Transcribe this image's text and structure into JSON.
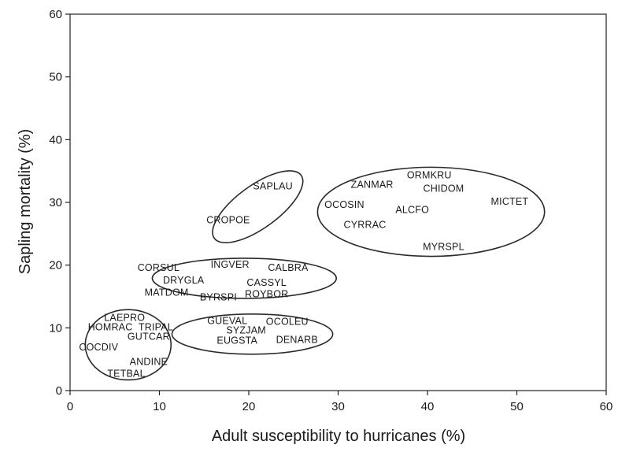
{
  "chart_data": {
    "type": "scatter",
    "title": "",
    "xlabel": "Adult susceptibility to hurricanes (%)",
    "ylabel": "Sapling mortality (%)",
    "xlim": [
      0,
      60
    ],
    "ylim": [
      0,
      60
    ],
    "x_ticks": [
      "0",
      "10",
      "20",
      "30",
      "40",
      "50",
      "60"
    ],
    "y_ticks": [
      "0",
      "10",
      "20",
      "30",
      "40",
      "50",
      "60"
    ],
    "grid": false,
    "points": [
      {
        "label": "SAPLAU",
        "x": 22.7,
        "y": 32.6
      },
      {
        "label": "CROPOE",
        "x": 17.7,
        "y": 27.2
      },
      {
        "label": "ZANMAR",
        "x": 33.8,
        "y": 32.8
      },
      {
        "label": "ORMKRU",
        "x": 40.2,
        "y": 34.3
      },
      {
        "label": "CHIDOM",
        "x": 41.8,
        "y": 32.2
      },
      {
        "label": "MICTET",
        "x": 49.2,
        "y": 30.1
      },
      {
        "label": "OCOSIN",
        "x": 30.7,
        "y": 29.6
      },
      {
        "label": "ALCFO",
        "x": 38.3,
        "y": 28.8
      },
      {
        "label": "CYRRAC",
        "x": 33.0,
        "y": 26.4
      },
      {
        "label": "MYRSPL",
        "x": 41.8,
        "y": 22.9
      },
      {
        "label": "CORSUL",
        "x": 9.9,
        "y": 19.6
      },
      {
        "label": "INGVER",
        "x": 17.9,
        "y": 20.1
      },
      {
        "label": "CALBRA",
        "x": 24.4,
        "y": 19.6
      },
      {
        "label": "DRYGLA",
        "x": 12.7,
        "y": 17.6
      },
      {
        "label": "CASSYL",
        "x": 22.0,
        "y": 17.2
      },
      {
        "label": "MATDOM",
        "x": 10.8,
        "y": 15.6
      },
      {
        "label": "BYRSPI",
        "x": 16.6,
        "y": 14.9
      },
      {
        "label": "ROYBOR",
        "x": 22.0,
        "y": 15.4
      },
      {
        "label": "LAEPRO",
        "x": 6.1,
        "y": 11.6
      },
      {
        "label": "HOMRAC",
        "x": 4.5,
        "y": 10.1
      },
      {
        "label": "TRIPAL",
        "x": 9.6,
        "y": 10.1
      },
      {
        "label": "GUTCAR",
        "x": 8.8,
        "y": 8.6
      },
      {
        "label": "COCDIV",
        "x": 3.2,
        "y": 6.9
      },
      {
        "label": "ANDINE",
        "x": 8.8,
        "y": 4.6
      },
      {
        "label": "TETBAL",
        "x": 6.3,
        "y": 2.7
      },
      {
        "label": "GUEVAL",
        "x": 17.6,
        "y": 11.1
      },
      {
        "label": "OCOLEU",
        "x": 24.3,
        "y": 11.0
      },
      {
        "label": "SYZJAM",
        "x": 19.7,
        "y": 9.6
      },
      {
        "label": "EUGSTA",
        "x": 18.7,
        "y": 8.0
      },
      {
        "label": "DENARB",
        "x": 25.4,
        "y": 8.1
      }
    ],
    "groups": [
      {
        "cx": 21.0,
        "cy": 29.3,
        "rx": 6.0,
        "ry": 3.4,
        "rotate": -36
      },
      {
        "cx": 40.4,
        "cy": 28.5,
        "rx": 12.7,
        "ry": 7.1,
        "rotate": 0
      },
      {
        "cx": 19.5,
        "cy": 17.9,
        "rx": 10.3,
        "ry": 3.2,
        "rotate": 0
      },
      {
        "cx": 6.5,
        "cy": 7.3,
        "rx": 4.8,
        "ry": 5.6,
        "rotate": 0
      },
      {
        "cx": 20.4,
        "cy": 9.0,
        "rx": 9.0,
        "ry": 3.2,
        "rotate": 0
      }
    ]
  }
}
